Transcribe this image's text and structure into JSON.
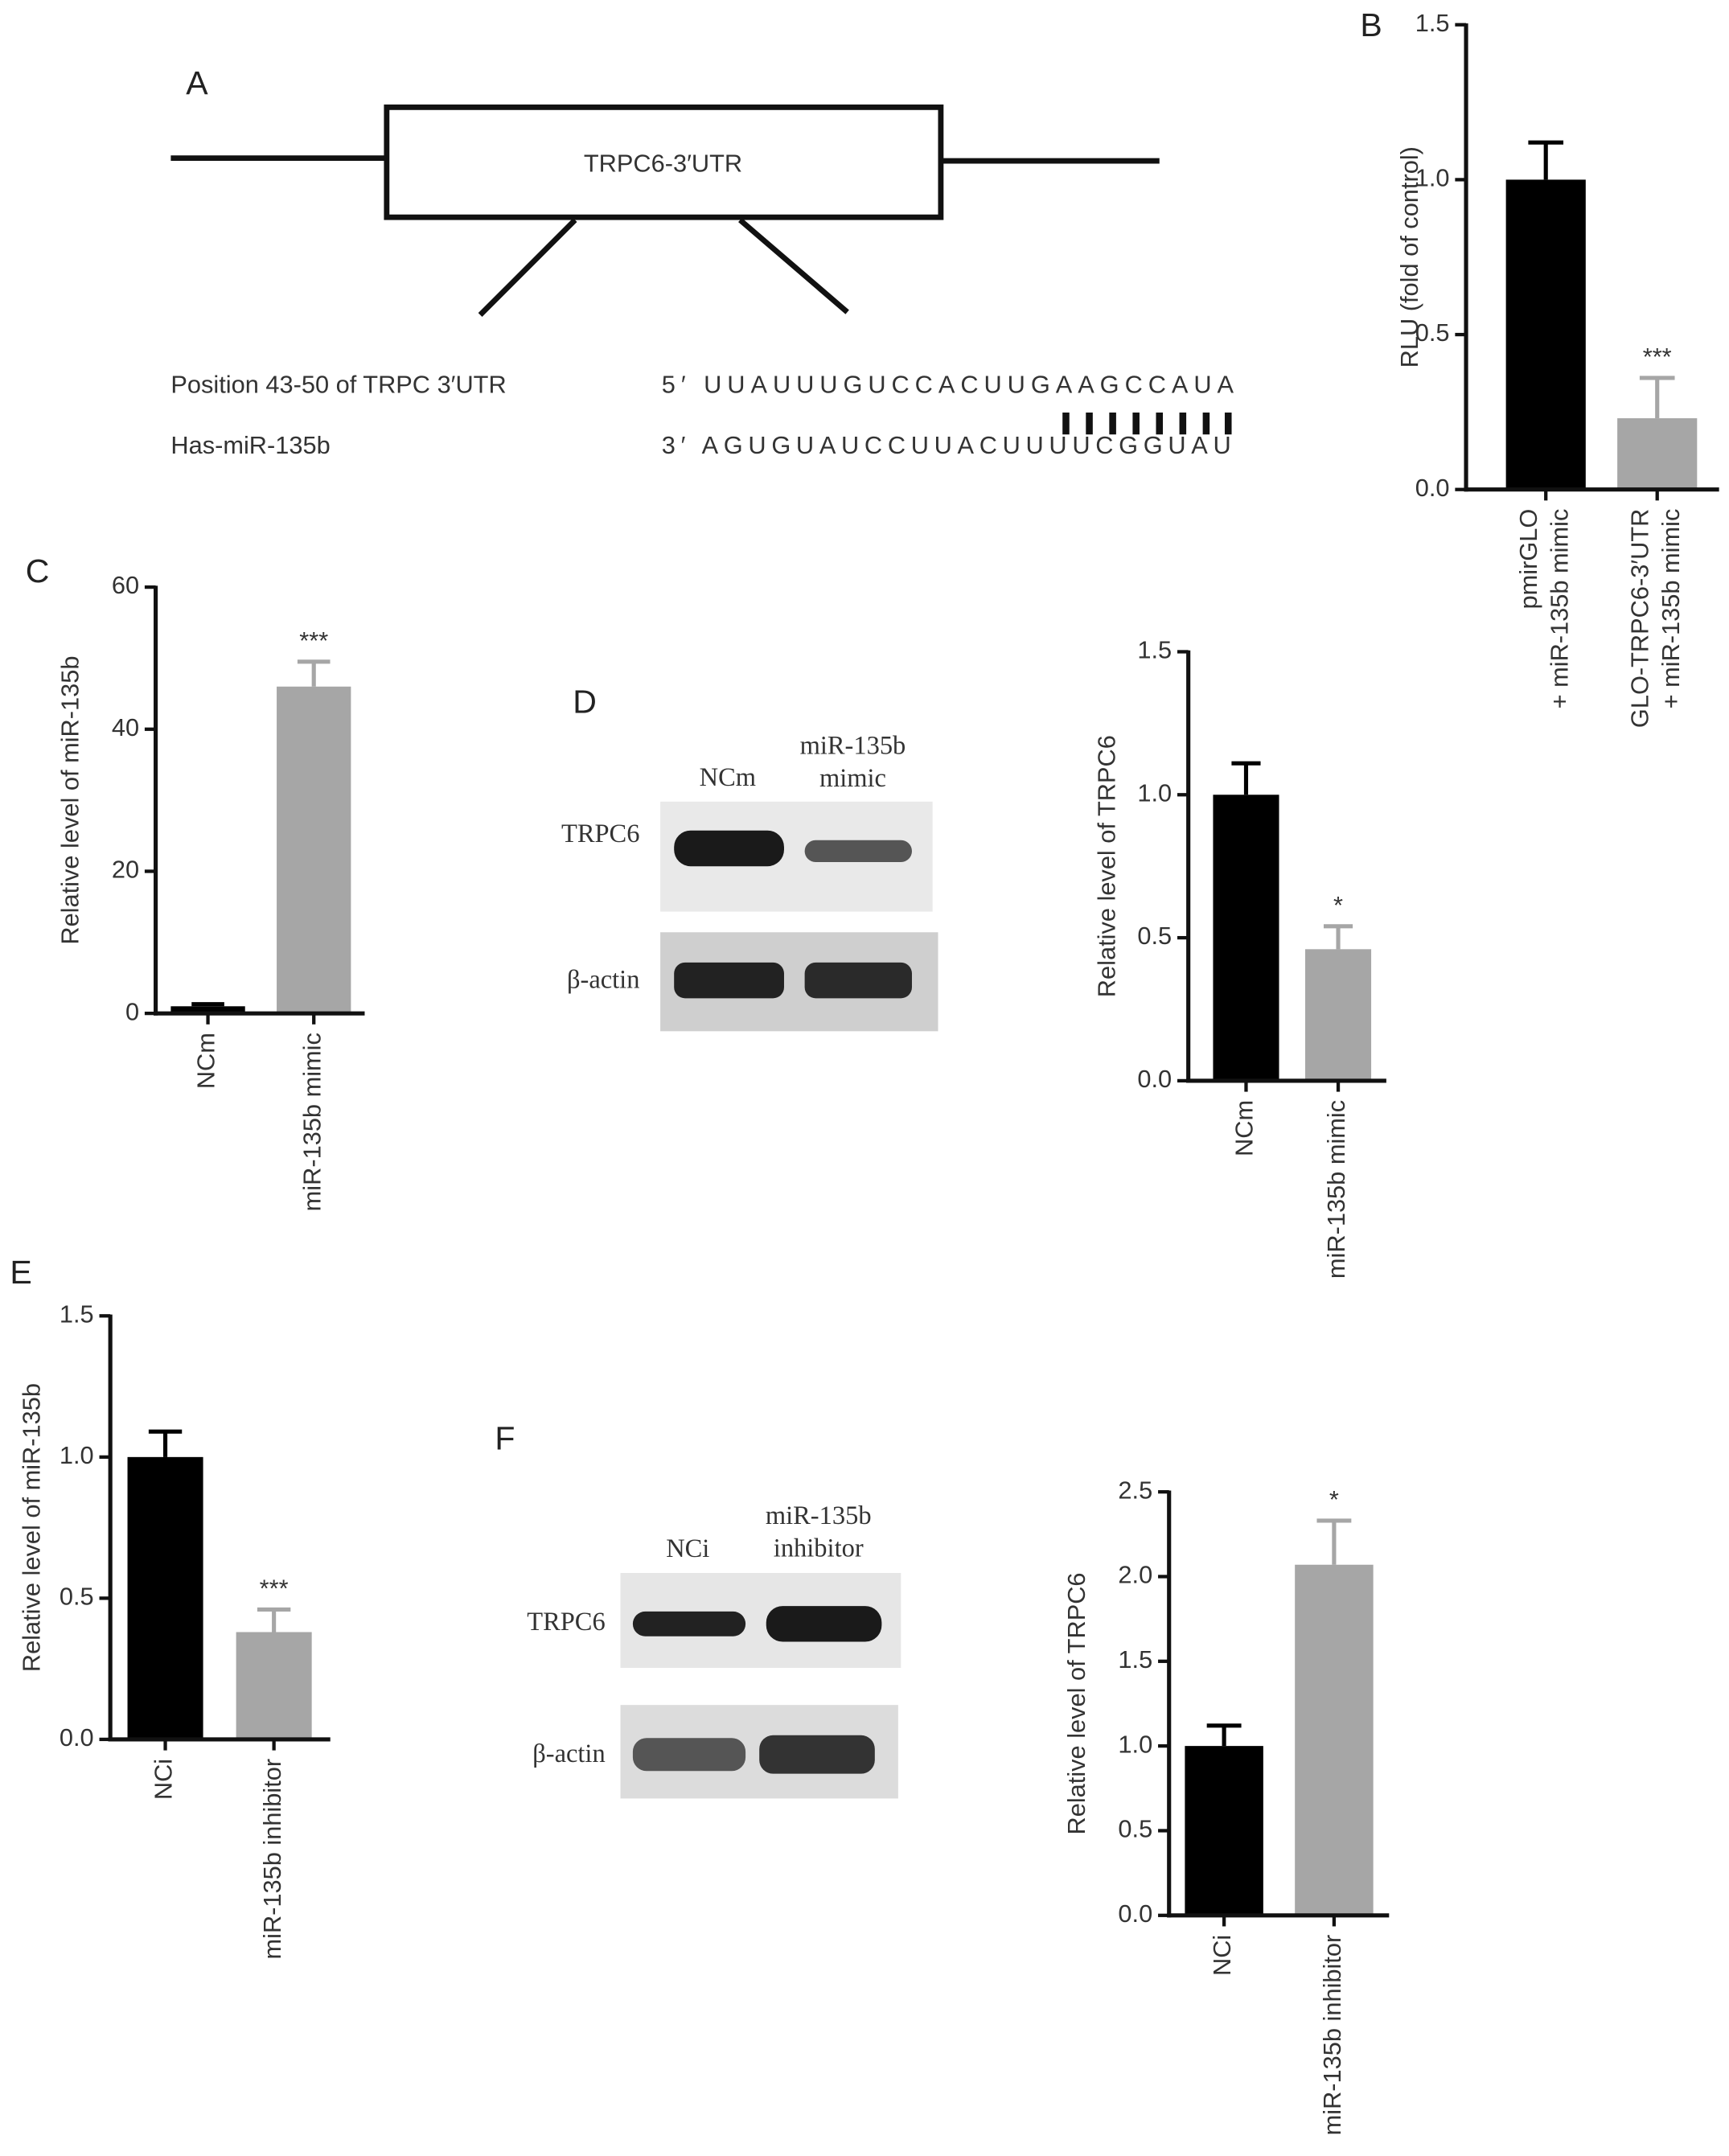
{
  "chart_data": [
    {
      "type": "bar",
      "label": "B",
      "ylabel": "RLU (fold of control)",
      "categories": [
        "pmirGLO\n+ miR-135b mimic",
        "GLO-TRPC6-3′UTR\n+ miR-135b mimic"
      ],
      "values": [
        1.0,
        0.23
      ],
      "errors": [
        0.12,
        0.13
      ],
      "colors": [
        "#000000",
        "#a6a6a6"
      ],
      "significance": [
        null,
        "***"
      ],
      "ylim": [
        0,
        1.5
      ],
      "yticks": [
        {
          "value": 0,
          "label": "0.0"
        },
        {
          "value": 0.5,
          "label": "0.5"
        },
        {
          "value": 1,
          "label": "1.0"
        },
        {
          "value": 1.5,
          "label": "1.5"
        }
      ]
    },
    {
      "type": "bar",
      "label": "C",
      "ylabel": "Relative level of miR-135b",
      "categories": [
        "NCm",
        "miR-135b mimic"
      ],
      "values": [
        1,
        46
      ],
      "errors": [
        0.3,
        3.5
      ],
      "colors": [
        "#000000",
        "#a6a6a6"
      ],
      "significance": [
        null,
        "***"
      ],
      "ylim": [
        0,
        60
      ],
      "yticks": [
        0,
        20,
        40,
        60
      ]
    },
    {
      "type": "bar",
      "ylabel": "Relative level of TRPC6",
      "categories": [
        "NCm",
        "miR-135b mimic"
      ],
      "values": [
        1.0,
        0.46
      ],
      "errors": [
        0.11,
        0.08
      ],
      "colors": [
        "#000000",
        "#a6a6a6"
      ],
      "significance": [
        null,
        "*"
      ],
      "ylim": [
        0,
        1.5
      ],
      "yticks": [
        {
          "value": 0,
          "label": "0.0"
        },
        {
          "value": 0.5,
          "label": "0.5"
        },
        {
          "value": 1,
          "label": "1.0"
        },
        {
          "value": 1.5,
          "label": "1.5"
        }
      ]
    },
    {
      "type": "bar",
      "label": "E",
      "ylabel": "Relative level of miR-135b",
      "categories": [
        "NCi",
        "miR-135b inhibitor"
      ],
      "values": [
        1.0,
        0.38
      ],
      "errors": [
        0.09,
        0.08
      ],
      "colors": [
        "#000000",
        "#a6a6a6"
      ],
      "significance": [
        null,
        "***"
      ],
      "ylim": [
        0,
        1.5
      ],
      "yticks": [
        {
          "value": 0,
          "label": "0.0"
        },
        {
          "value": 0.5,
          "label": "0.5"
        },
        {
          "value": 1,
          "label": "1.0"
        },
        {
          "value": 1.5,
          "label": "1.5"
        }
      ]
    },
    {
      "type": "bar",
      "ylabel": "Relative level of TRPC6",
      "categories": [
        "NCi",
        "miR-135b inhibitor"
      ],
      "values": [
        1.0,
        2.07
      ],
      "errors": [
        0.12,
        0.26
      ],
      "colors": [
        "#000000",
        "#a6a6a6"
      ],
      "significance": [
        null,
        "*"
      ],
      "ylim": [
        0,
        2.5
      ],
      "yticks": [
        {
          "value": 0,
          "label": "0.0"
        },
        {
          "value": 0.5,
          "label": "0.5"
        },
        {
          "value": 1,
          "label": "1.0"
        },
        {
          "value": 1.5,
          "label": "1.5"
        },
        {
          "value": 2,
          "label": "2.0"
        },
        {
          "value": 2.5,
          "label": "2.5"
        }
      ]
    }
  ],
  "panel_a": {
    "label": "A",
    "box": "TRPC6-3′UTR",
    "rows": [
      "Position 43-50 of TRPC 3′UTR",
      "Has-miR-135b"
    ],
    "sequences": [
      "5′ UUAUUUGUCCACUUGAAGCCAUA",
      "3′ AGUGUAUCCUUACUUUUCGGUAU"
    ]
  },
  "blots": [
    {
      "label": "D",
      "lanes": [
        "NCm",
        "miR-135b\nmimic"
      ],
      "rows": [
        "TRPC6",
        "β-actin"
      ]
    },
    {
      "label": "F",
      "lanes": [
        "NCi",
        "miR-135b\ninhibitor"
      ],
      "rows": [
        "TRPC6",
        "β-actin"
      ]
    }
  ]
}
